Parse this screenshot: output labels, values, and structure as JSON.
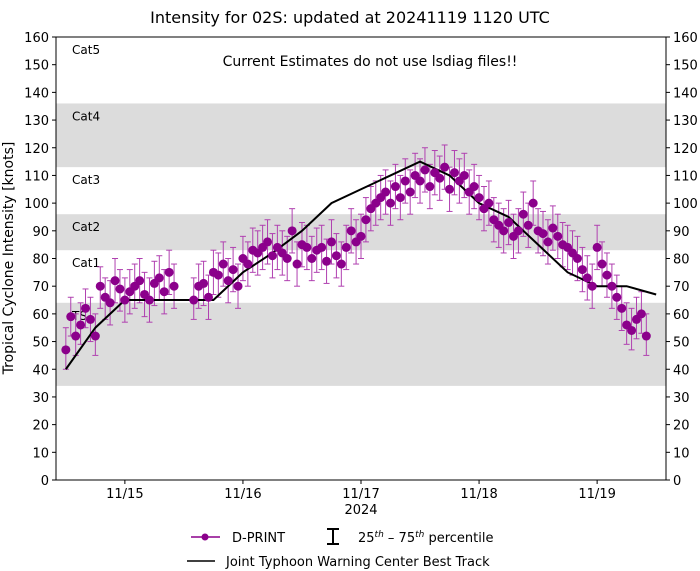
{
  "chart_data": {
    "type": "scatter",
    "title": "Intensity for 02S: updated at 20241119 1120 UTC",
    "annotation": "Current Estimates do not use lsdiag files!!",
    "xlabel": "2024",
    "ylabel": "Tropical Cyclone Intensity [knots]",
    "ylim": [
      0,
      160
    ],
    "xlim": [
      "2024-11-14 10:00",
      "2024-11-19 14:00"
    ],
    "yticks": [
      0,
      10,
      20,
      30,
      40,
      50,
      60,
      70,
      80,
      90,
      100,
      110,
      120,
      130,
      140,
      150,
      160
    ],
    "xticks": [
      {
        "date": "2024-11-15 00:00",
        "label": "11/15"
      },
      {
        "date": "2024-11-16 00:00",
        "label": "11/16"
      },
      {
        "date": "2024-11-17 00:00",
        "label": "11/17"
      },
      {
        "date": "2024-11-18 00:00",
        "label": "11/18"
      },
      {
        "date": "2024-11-19 00:00",
        "label": "11/19"
      }
    ],
    "grid": false,
    "category_bands": [
      {
        "label": "TS",
        "min": 34,
        "max": 64,
        "shaded": true
      },
      {
        "label": "Cat1",
        "min": 64,
        "max": 83,
        "shaded": false
      },
      {
        "label": "Cat2",
        "min": 83,
        "max": 96,
        "shaded": true
      },
      {
        "label": "Cat3",
        "min": 96,
        "max": 113,
        "shaded": false
      },
      {
        "label": "Cat4",
        "min": 113,
        "max": 136,
        "shaded": true
      },
      {
        "label": "Cat5",
        "min": 136,
        "max": 160,
        "shaded": false
      }
    ],
    "colors": {
      "dprint": "#8b008b",
      "errorbar": "#b040b0",
      "best_track": "#000000",
      "band": "#dcdcdc"
    },
    "legend": {
      "placement": "bottom",
      "dprint": "D-PRINT",
      "percentile_base_a": "25",
      "percentile_sup_a": "th",
      "percentile_mid": " – 75",
      "percentile_sup_b": "th",
      "percentile_end": " percentile",
      "best_track": "Joint Typhoon Warning Center Best Track"
    },
    "best_track": [
      [
        "2024-11-14 12:00",
        40
      ],
      [
        "2024-11-14 18:00",
        55
      ],
      [
        "2024-11-15 00:00",
        65
      ],
      [
        "2024-11-15 06:00",
        65
      ],
      [
        "2024-11-15 12:00",
        65
      ],
      [
        "2024-11-15 18:00",
        65
      ],
      [
        "2024-11-16 00:00",
        75
      ],
      [
        "2024-11-16 06:00",
        82
      ],
      [
        "2024-11-16 12:00",
        90
      ],
      [
        "2024-11-16 18:00",
        100
      ],
      [
        "2024-11-17 00:00",
        105
      ],
      [
        "2024-11-17 06:00",
        110
      ],
      [
        "2024-11-17 12:00",
        115
      ],
      [
        "2024-11-17 18:00",
        110
      ],
      [
        "2024-11-18 00:00",
        100
      ],
      [
        "2024-11-18 06:00",
        95
      ],
      [
        "2024-11-18 12:00",
        85
      ],
      [
        "2024-11-18 18:00",
        75
      ],
      [
        "2024-11-19 00:00",
        70
      ],
      [
        "2024-11-19 06:00",
        70
      ],
      [
        "2024-11-19 12:00",
        67
      ]
    ],
    "dprint": [
      [
        "2024-11-14 12:00",
        47,
        40,
        55
      ],
      [
        "2024-11-14 13:00",
        59,
        52,
        66
      ],
      [
        "2024-11-14 14:00",
        52,
        45,
        60
      ],
      [
        "2024-11-14 15:00",
        56,
        49,
        64
      ],
      [
        "2024-11-14 16:00",
        62,
        55,
        69
      ],
      [
        "2024-11-14 17:00",
        58,
        50,
        66
      ],
      [
        "2024-11-14 18:00",
        52,
        45,
        60
      ],
      [
        "2024-11-14 19:00",
        70,
        62,
        77
      ],
      [
        "2024-11-14 20:00",
        66,
        58,
        73
      ],
      [
        "2024-11-14 21:00",
        64,
        56,
        72
      ],
      [
        "2024-11-14 22:00",
        72,
        64,
        80
      ],
      [
        "2024-11-14 23:00",
        69,
        61,
        76
      ],
      [
        "2024-11-15 00:00",
        65,
        57,
        73
      ],
      [
        "2024-11-15 01:00",
        68,
        60,
        76
      ],
      [
        "2024-11-15 02:00",
        70,
        62,
        78
      ],
      [
        "2024-11-15 03:00",
        72,
        64,
        80
      ],
      [
        "2024-11-15 04:00",
        67,
        59,
        75
      ],
      [
        "2024-11-15 05:00",
        65,
        57,
        73
      ],
      [
        "2024-11-15 06:00",
        71,
        63,
        79
      ],
      [
        "2024-11-15 07:00",
        73,
        65,
        81
      ],
      [
        "2024-11-15 08:00",
        68,
        60,
        76
      ],
      [
        "2024-11-15 09:00",
        75,
        67,
        83
      ],
      [
        "2024-11-15 10:00",
        70,
        62,
        78
      ],
      [
        "2024-11-15 14:00",
        65,
        58,
        73
      ],
      [
        "2024-11-15 15:00",
        70,
        62,
        78
      ],
      [
        "2024-11-15 16:00",
        71,
        63,
        79
      ],
      [
        "2024-11-15 17:00",
        66,
        58,
        74
      ],
      [
        "2024-11-15 18:00",
        75,
        67,
        83
      ],
      [
        "2024-11-15 19:00",
        74,
        66,
        82
      ],
      [
        "2024-11-15 20:00",
        78,
        70,
        86
      ],
      [
        "2024-11-15 21:00",
        72,
        64,
        80
      ],
      [
        "2024-11-15 22:00",
        76,
        68,
        84
      ],
      [
        "2024-11-15 23:00",
        70,
        62,
        78
      ],
      [
        "2024-11-16 00:00",
        80,
        72,
        88
      ],
      [
        "2024-11-16 01:00",
        78,
        70,
        86
      ],
      [
        "2024-11-16 02:00",
        83,
        75,
        91
      ],
      [
        "2024-11-16 03:00",
        82,
        74,
        90
      ],
      [
        "2024-11-16 04:00",
        84,
        76,
        92
      ],
      [
        "2024-11-16 05:00",
        86,
        78,
        94
      ],
      [
        "2024-11-16 06:00",
        81,
        73,
        89
      ],
      [
        "2024-11-16 07:00",
        84,
        76,
        92
      ],
      [
        "2024-11-16 08:00",
        82,
        74,
        90
      ],
      [
        "2024-11-16 09:00",
        80,
        72,
        88
      ],
      [
        "2024-11-16 10:00",
        90,
        82,
        98
      ],
      [
        "2024-11-16 11:00",
        78,
        70,
        86
      ],
      [
        "2024-11-16 12:00",
        85,
        77,
        93
      ],
      [
        "2024-11-16 13:00",
        84,
        76,
        92
      ],
      [
        "2024-11-16 14:00",
        80,
        72,
        88
      ],
      [
        "2024-11-16 15:00",
        83,
        75,
        91
      ],
      [
        "2024-11-16 16:00",
        84,
        76,
        92
      ],
      [
        "2024-11-16 17:00",
        79,
        71,
        87
      ],
      [
        "2024-11-16 18:00",
        86,
        78,
        94
      ],
      [
        "2024-11-16 19:00",
        81,
        73,
        89
      ],
      [
        "2024-11-16 20:00",
        78,
        70,
        86
      ],
      [
        "2024-11-16 21:00",
        84,
        76,
        92
      ],
      [
        "2024-11-16 22:00",
        90,
        82,
        98
      ],
      [
        "2024-11-16 23:00",
        86,
        78,
        94
      ],
      [
        "2024-11-17 00:00",
        88,
        80,
        96
      ],
      [
        "2024-11-17 01:00",
        94,
        86,
        102
      ],
      [
        "2024-11-17 02:00",
        98,
        90,
        106
      ],
      [
        "2024-11-17 03:00",
        100,
        92,
        108
      ],
      [
        "2024-11-17 04:00",
        102,
        94,
        110
      ],
      [
        "2024-11-17 05:00",
        104,
        96,
        112
      ],
      [
        "2024-11-17 06:00",
        100,
        92,
        108
      ],
      [
        "2024-11-17 07:00",
        106,
        98,
        114
      ],
      [
        "2024-11-17 08:00",
        102,
        94,
        110
      ],
      [
        "2024-11-17 09:00",
        108,
        100,
        116
      ],
      [
        "2024-11-17 10:00",
        104,
        96,
        112
      ],
      [
        "2024-11-17 11:00",
        110,
        102,
        118
      ],
      [
        "2024-11-17 12:00",
        108,
        100,
        116
      ],
      [
        "2024-11-17 13:00",
        112,
        104,
        120
      ],
      [
        "2024-11-17 14:00",
        106,
        98,
        114
      ],
      [
        "2024-11-17 15:00",
        111,
        103,
        119
      ],
      [
        "2024-11-17 16:00",
        109,
        101,
        117
      ],
      [
        "2024-11-17 17:00",
        113,
        105,
        121
      ],
      [
        "2024-11-17 18:00",
        105,
        97,
        113
      ],
      [
        "2024-11-17 19:00",
        111,
        103,
        119
      ],
      [
        "2024-11-17 20:00",
        108,
        100,
        116
      ],
      [
        "2024-11-17 21:00",
        110,
        102,
        118
      ],
      [
        "2024-11-17 22:00",
        104,
        96,
        112
      ],
      [
        "2024-11-17 23:00",
        106,
        98,
        114
      ],
      [
        "2024-11-18 00:00",
        102,
        94,
        110
      ],
      [
        "2024-11-18 01:00",
        98,
        90,
        106
      ],
      [
        "2024-11-18 02:00",
        100,
        92,
        108
      ],
      [
        "2024-11-18 03:00",
        94,
        86,
        102
      ],
      [
        "2024-11-18 04:00",
        92,
        84,
        100
      ],
      [
        "2024-11-18 05:00",
        90,
        82,
        98
      ],
      [
        "2024-11-18 06:00",
        93,
        85,
        101
      ],
      [
        "2024-11-18 07:00",
        88,
        80,
        96
      ],
      [
        "2024-11-18 08:00",
        90,
        82,
        98
      ],
      [
        "2024-11-18 09:00",
        96,
        88,
        104
      ],
      [
        "2024-11-18 10:00",
        92,
        84,
        100
      ],
      [
        "2024-11-18 11:00",
        100,
        92,
        108
      ],
      [
        "2024-11-18 12:00",
        90,
        82,
        98
      ],
      [
        "2024-11-18 13:00",
        89,
        81,
        97
      ],
      [
        "2024-11-18 14:00",
        86,
        78,
        94
      ],
      [
        "2024-11-18 15:00",
        91,
        83,
        99
      ],
      [
        "2024-11-18 16:00",
        88,
        80,
        96
      ],
      [
        "2024-11-18 17:00",
        85,
        77,
        93
      ],
      [
        "2024-11-18 18:00",
        84,
        76,
        92
      ],
      [
        "2024-11-18 19:00",
        82,
        74,
        90
      ],
      [
        "2024-11-18 20:00",
        80,
        72,
        88
      ],
      [
        "2024-11-18 21:00",
        76,
        68,
        84
      ],
      [
        "2024-11-18 22:00",
        73,
        65,
        81
      ],
      [
        "2024-11-18 23:00",
        70,
        62,
        78
      ],
      [
        "2024-11-19 00:00",
        84,
        76,
        92
      ],
      [
        "2024-11-19 01:00",
        78,
        70,
        86
      ],
      [
        "2024-11-19 02:00",
        74,
        66,
        82
      ],
      [
        "2024-11-19 03:00",
        70,
        62,
        78
      ],
      [
        "2024-11-19 04:00",
        66,
        58,
        74
      ],
      [
        "2024-11-19 05:00",
        62,
        54,
        70
      ],
      [
        "2024-11-19 06:00",
        56,
        49,
        64
      ],
      [
        "2024-11-19 07:00",
        54,
        47,
        62
      ],
      [
        "2024-11-19 08:00",
        58,
        51,
        66
      ],
      [
        "2024-11-19 09:00",
        60,
        53,
        68
      ],
      [
        "2024-11-19 10:00",
        52,
        45,
        60
      ]
    ]
  }
}
